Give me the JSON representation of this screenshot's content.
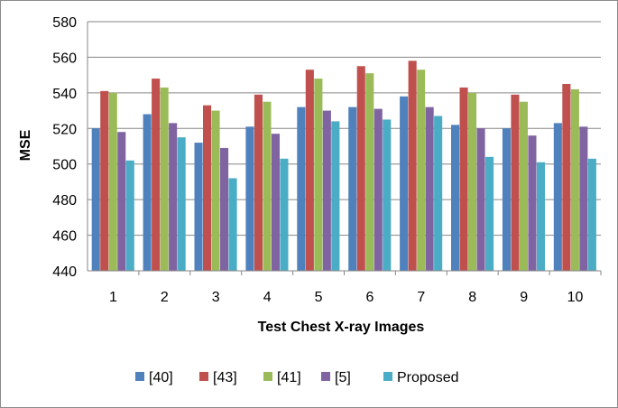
{
  "chart_data": {
    "type": "bar",
    "xlabel": "Test Chest X-ray Images",
    "ylabel": "MSE",
    "ylim": [
      440,
      580
    ],
    "yticks": [
      "440",
      "460",
      "480",
      "500",
      "520",
      "540",
      "560",
      "580"
    ],
    "categories": [
      "1",
      "2",
      "3",
      "4",
      "5",
      "6",
      "7",
      "8",
      "9",
      "10"
    ],
    "grid": true,
    "legend_position": "bottom",
    "series": [
      {
        "name": "[40]",
        "color": "#4f81bd",
        "values": [
          520,
          528,
          512,
          521,
          532,
          532,
          538,
          522,
          520,
          523
        ]
      },
      {
        "name": "[43]",
        "color": "#c0504d",
        "values": [
          541,
          548,
          533,
          539,
          553,
          555,
          558,
          543,
          539,
          545
        ]
      },
      {
        "name": "[41]",
        "color": "#9bbb59",
        "values": [
          540,
          543,
          530,
          535,
          548,
          551,
          553,
          540,
          535,
          542
        ]
      },
      {
        "name": "[5]",
        "color": "#8064a2",
        "values": [
          518,
          523,
          509,
          517,
          530,
          531,
          532,
          520,
          516,
          521
        ]
      },
      {
        "name": "Proposed",
        "color": "#4bacc6",
        "values": [
          502,
          515,
          492,
          503,
          524,
          525,
          527,
          504,
          501,
          503
        ]
      }
    ]
  }
}
